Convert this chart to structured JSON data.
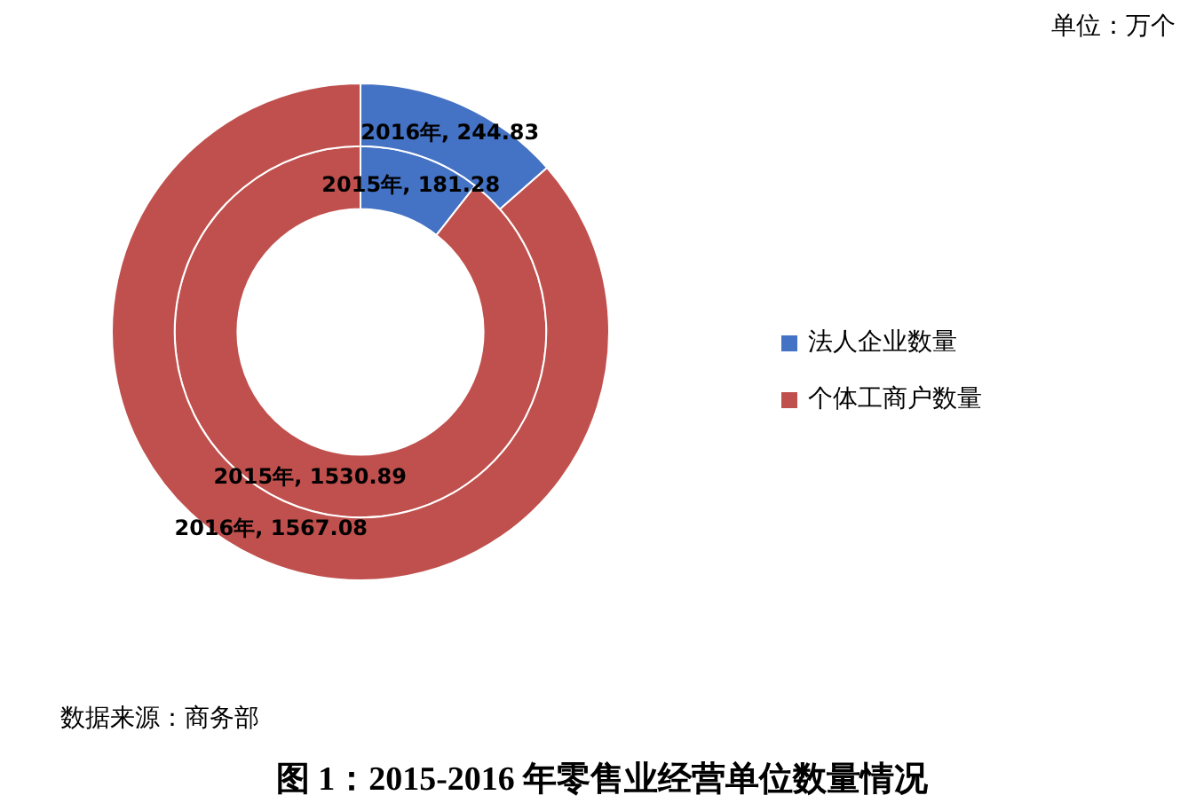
{
  "chart_data": {
    "type": "donut",
    "title": "图 1：2015-2016 年零售业经营单位数量情况",
    "categories": [
      "法人企业数量",
      "个体工商户数量"
    ],
    "colors": [
      "#4472c4",
      "#c0504d"
    ],
    "series": [
      {
        "name": "2015年,",
        "values": [
          181.28,
          1530.89
        ]
      },
      {
        "name": "2016年,",
        "values": [
          244.83,
          1567.08
        ]
      }
    ],
    "data_labels": true,
    "legend": "right",
    "annotations": [
      "单位：万个",
      "数据来源：商务部"
    ]
  }
}
